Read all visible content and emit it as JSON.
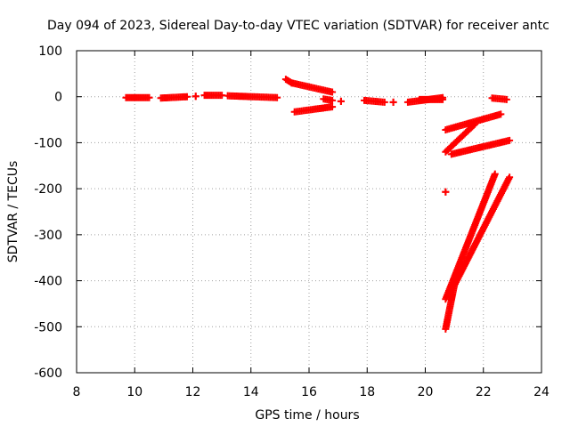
{
  "chart_data": {
    "type": "scatter",
    "title": "Day 094 of 2023, Sidereal Day-to-day VTEC variation (SDTVAR) for receiver antc",
    "xlabel": "GPS time / hours",
    "ylabel": "SDTVAR / TECUs",
    "xlim": [
      8,
      24
    ],
    "ylim": [
      -600,
      100
    ],
    "x_ticks": [
      8,
      10,
      12,
      14,
      16,
      18,
      20,
      22,
      24
    ],
    "y_ticks": [
      100,
      0,
      -100,
      -200,
      -300,
      -400,
      -500,
      -600
    ],
    "x_tick_labels": [
      "8",
      "10",
      "12",
      "14",
      "16",
      "18",
      "20",
      "22",
      "24"
    ],
    "y_tick_labels": [
      "100",
      "0",
      "-100",
      "-200",
      "-300",
      "-400",
      "-500",
      "-600"
    ],
    "grid": true,
    "marker": "+",
    "color": "#ff0000",
    "segments": [
      {
        "x_start": 9.7,
        "x_end": 10.5,
        "y_start": -2,
        "y_end": -2
      },
      {
        "x_start": 10.9,
        "x_end": 11.8,
        "y_start": -3,
        "y_end": 0
      },
      {
        "x_start": 12.1,
        "x_end": 12.1,
        "y_start": 1,
        "y_end": 1
      },
      {
        "x_start": 12.4,
        "x_end": 13.0,
        "y_start": 3,
        "y_end": 3
      },
      {
        "x_start": 13.2,
        "x_end": 14.9,
        "y_start": 2,
        "y_end": -2
      },
      {
        "x_start": 15.2,
        "x_end": 15.4,
        "y_start": 38,
        "y_end": 30
      },
      {
        "x_start": 15.4,
        "x_end": 16.8,
        "y_start": 30,
        "y_end": 10
      },
      {
        "x_start": 15.5,
        "x_end": 16.8,
        "y_start": -33,
        "y_end": -22
      },
      {
        "x_start": 16.5,
        "x_end": 16.8,
        "y_start": -5,
        "y_end": -8
      },
      {
        "x_start": 17.1,
        "x_end": 17.1,
        "y_start": -10,
        "y_end": -10
      },
      {
        "x_start": 17.9,
        "x_end": 18.6,
        "y_start": -8,
        "y_end": -12
      },
      {
        "x_start": 18.9,
        "x_end": 18.9,
        "y_start": -12,
        "y_end": -12
      },
      {
        "x_start": 19.4,
        "x_end": 20.6,
        "y_start": -12,
        "y_end": -2
      },
      {
        "x_start": 19.8,
        "x_end": 20.6,
        "y_start": -6,
        "y_end": -6
      },
      {
        "x_start": 22.3,
        "x_end": 22.8,
        "y_start": -3,
        "y_end": -6
      },
      {
        "x_start": 20.7,
        "x_end": 22.6,
        "y_start": -72,
        "y_end": -38
      },
      {
        "x_start": 20.7,
        "x_end": 21.7,
        "y_start": -120,
        "y_end": -60
      },
      {
        "x_start": 20.9,
        "x_end": 22.9,
        "y_start": -125,
        "y_end": -95
      },
      {
        "x_start": 20.7,
        "x_end": 20.7,
        "y_start": -207,
        "y_end": -207
      },
      {
        "x_start": 20.7,
        "x_end": 22.4,
        "y_start": -440,
        "y_end": -168
      },
      {
        "x_start": 20.7,
        "x_end": 21.0,
        "y_start": -505,
        "y_end": -410
      },
      {
        "x_start": 21.0,
        "x_end": 22.9,
        "y_start": -410,
        "y_end": -175
      }
    ]
  }
}
